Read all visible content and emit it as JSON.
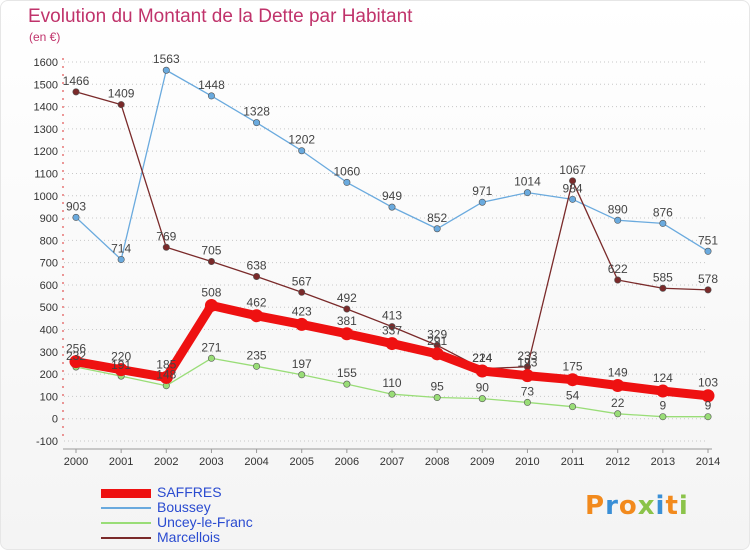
{
  "title": "Evolution du Montant de la Dette par Habitant",
  "subtitle": "(en €)",
  "brand": {
    "letters": [
      "P",
      "r",
      "o",
      "x",
      "i",
      "t",
      "i"
    ],
    "colors": [
      "#f28a1d",
      "#3a8fd6",
      "#f28a1d",
      "#8bc34a",
      "#3a8fd6",
      "#f28a1d",
      "#8bc34a"
    ]
  },
  "chart_data": {
    "type": "line",
    "title": "Evolution du Montant de la Dette par Habitant",
    "ylabel": "(en €)",
    "xlabel": "",
    "categories": [
      "2000",
      "2001",
      "2002",
      "2003",
      "2004",
      "2005",
      "2006",
      "2007",
      "2008",
      "2009",
      "2010",
      "2011",
      "2012",
      "2013",
      "2014"
    ],
    "ylim": [
      -100,
      1600
    ],
    "yticks": [
      -100,
      0,
      100,
      200,
      300,
      400,
      500,
      600,
      700,
      800,
      900,
      1000,
      1100,
      1200,
      1300,
      1400,
      1500,
      1600
    ],
    "grid": "horizontal-dotted",
    "legend_position": "bottom-left",
    "series": [
      {
        "name": "SAFFRES",
        "color": "#ee1111",
        "values": [
          256,
          220,
          185,
          508,
          462,
          423,
          381,
          337,
          291,
          214,
          193,
          175,
          149,
          124,
          103
        ]
      },
      {
        "name": "Boussey",
        "color": "#6aaade",
        "values": [
          903,
          714,
          1563,
          1448,
          1328,
          1202,
          1060,
          949,
          852,
          971,
          1014,
          984,
          890,
          876,
          751
        ]
      },
      {
        "name": "Uncey-le-Franc",
        "color": "#99dd77",
        "values": [
          232,
          191,
          148,
          271,
          235,
          197,
          155,
          110,
          95,
          90,
          73,
          54,
          22,
          9,
          9
        ]
      },
      {
        "name": "Marcellois",
        "color": "#7a2a2a",
        "values": [
          1466,
          1409,
          769,
          705,
          638,
          567,
          492,
          413,
          329,
          224,
          233,
          1067,
          622,
          585,
          578
        ]
      }
    ]
  }
}
